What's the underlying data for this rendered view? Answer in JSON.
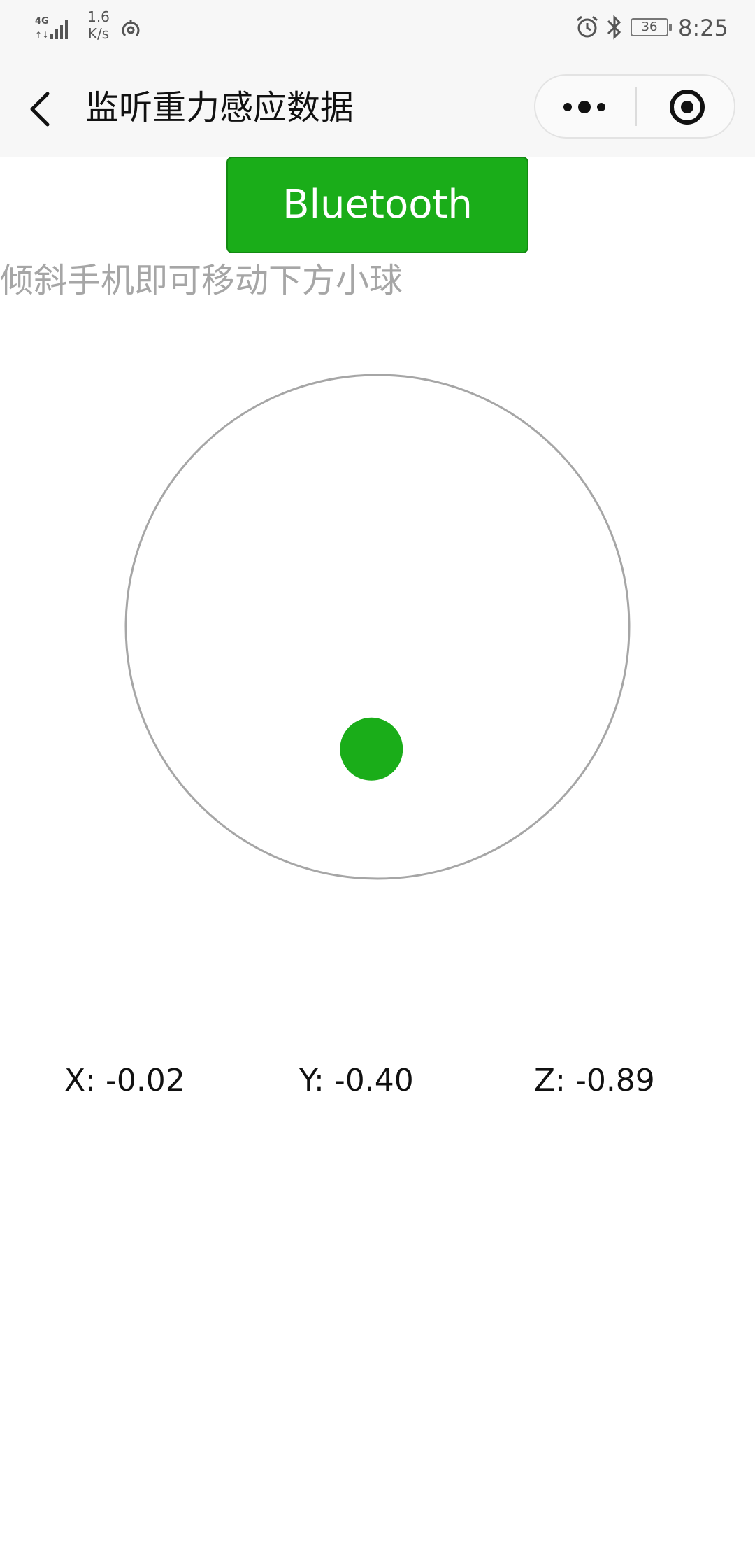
{
  "status_bar": {
    "network_type": "4G",
    "net_speed_value": "1.6",
    "net_speed_unit": "K/s",
    "battery": "36",
    "time": "8:25",
    "icons": [
      "signal-icon",
      "hotspot-icon",
      "alarm-icon",
      "bluetooth-icon",
      "battery-icon"
    ]
  },
  "nav": {
    "title": "监听重力感应数据"
  },
  "bluetooth_button": {
    "label": "Bluetooth"
  },
  "hint": "倾斜手机即可移动下方小球",
  "sensor": {
    "x_text": "X: -0.02",
    "y_text": "Y: -0.40",
    "z_text": "Z: -0.89",
    "x": -0.02,
    "y": -0.4,
    "z": -0.89
  },
  "colors": {
    "accent": "#1aad19",
    "ring": "#a6a6a6",
    "hint": "#a6a6a6",
    "nav_bg": "#f7f7f7"
  }
}
